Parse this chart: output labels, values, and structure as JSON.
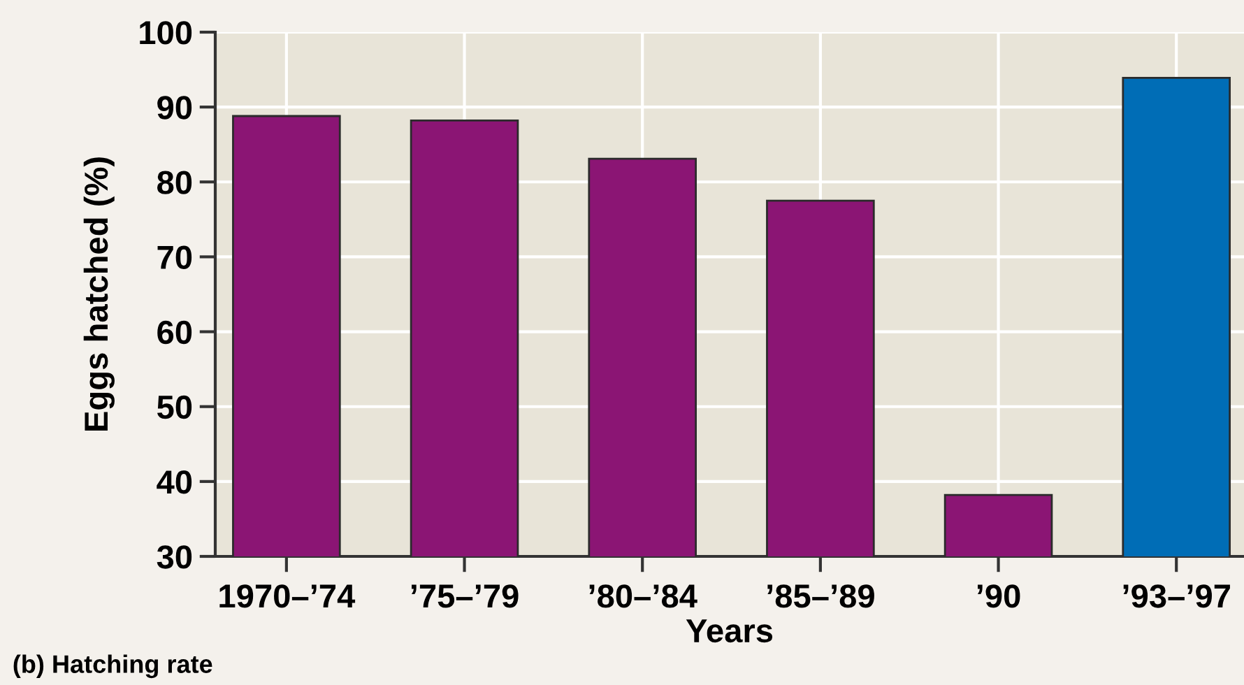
{
  "chart_data": {
    "type": "bar",
    "xlabel": "Years",
    "ylabel": "Eggs hatched (%)",
    "categories": [
      "1970–’74",
      "’75–’79",
      "’80–’84",
      "’85–’89",
      "’90",
      "’93–’97"
    ],
    "values": [
      88.8,
      88.2,
      83.1,
      77.5,
      38.2,
      93.9
    ],
    "colors": [
      "#8b1574",
      "#8b1574",
      "#8b1574",
      "#8b1574",
      "#8b1574",
      "#006db6"
    ],
    "ylim": [
      30,
      100
    ],
    "yticks": [
      30,
      40,
      50,
      60,
      70,
      80,
      90,
      100
    ],
    "grid": true,
    "annotations": [
      "(b) Hatching rate"
    ]
  }
}
